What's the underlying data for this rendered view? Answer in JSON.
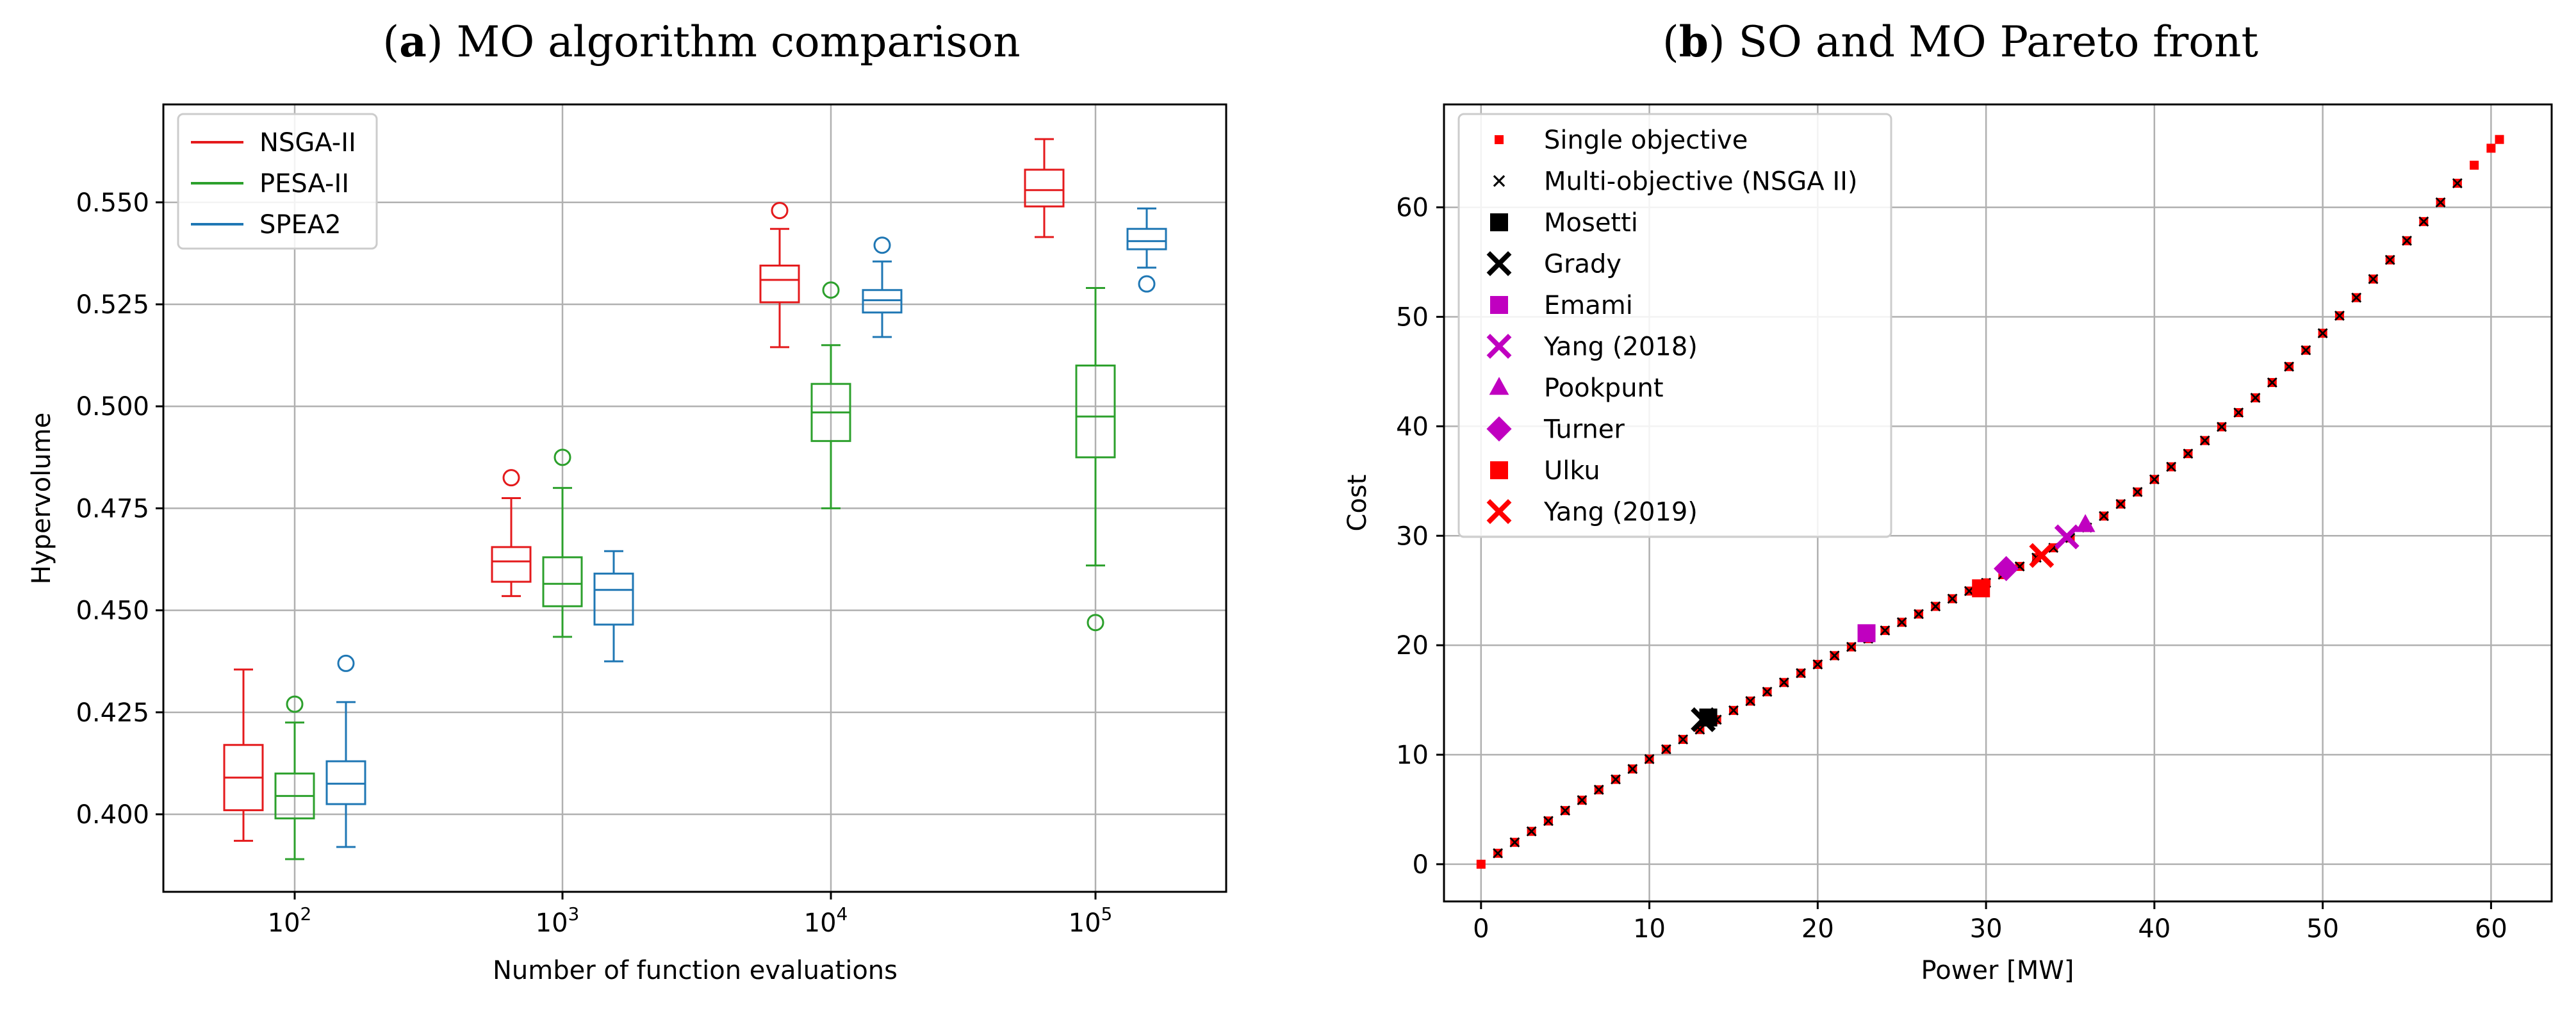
{
  "chart_data": [
    {
      "type": "box",
      "title_prefix": "(",
      "title_letter": "a",
      "title_suffix": ") MO algorithm comparison",
      "xlabel": "Number of function evaluations",
      "ylabel": "Hypervolume",
      "ylim": [
        0.381,
        0.574
      ],
      "yticks": [
        "0.400",
        "0.425",
        "0.450",
        "0.475",
        "0.500",
        "0.525",
        "0.550"
      ],
      "categories": [
        "10",
        "10",
        "10",
        "10"
      ],
      "category_exponents": [
        "2",
        "3",
        "4",
        "5"
      ],
      "grid": true,
      "legend": "top-left",
      "series": [
        {
          "name": "NSGA-II",
          "color": "#e41a1c",
          "boxes": [
            {
              "whislo": 0.3935,
              "q1": 0.401,
              "med": 0.409,
              "q3": 0.417,
              "whishi": 0.4355,
              "fliers": []
            },
            {
              "whislo": 0.4535,
              "q1": 0.457,
              "med": 0.462,
              "q3": 0.4655,
              "whishi": 0.4775,
              "fliers": [
                0.4825
              ]
            },
            {
              "whislo": 0.5145,
              "q1": 0.5255,
              "med": 0.531,
              "q3": 0.5345,
              "whishi": 0.5435,
              "fliers": [
                0.548
              ]
            },
            {
              "whislo": 0.5415,
              "q1": 0.549,
              "med": 0.553,
              "q3": 0.558,
              "whishi": 0.5655,
              "fliers": []
            }
          ]
        },
        {
          "name": "PESA-II",
          "color": "#2ca02c",
          "boxes": [
            {
              "whislo": 0.389,
              "q1": 0.399,
              "med": 0.4045,
              "q3": 0.41,
              "whishi": 0.4225,
              "fliers": [
                0.427
              ]
            },
            {
              "whislo": 0.4435,
              "q1": 0.451,
              "med": 0.4565,
              "q3": 0.463,
              "whishi": 0.48,
              "fliers": [
                0.4875
              ]
            },
            {
              "whislo": 0.475,
              "q1": 0.4915,
              "med": 0.4985,
              "q3": 0.5055,
              "whishi": 0.515,
              "fliers": [
                0.5285
              ]
            },
            {
              "whislo": 0.461,
              "q1": 0.4875,
              "med": 0.4975,
              "q3": 0.51,
              "whishi": 0.529,
              "fliers": [
                0.447
              ]
            }
          ]
        },
        {
          "name": "SPEA2",
          "color": "#1f77b4",
          "boxes": [
            {
              "whislo": 0.392,
              "q1": 0.4025,
              "med": 0.4075,
              "q3": 0.413,
              "whishi": 0.4275,
              "fliers": [
                0.437
              ]
            },
            {
              "whislo": 0.4375,
              "q1": 0.4465,
              "med": 0.455,
              "q3": 0.459,
              "whishi": 0.4645,
              "fliers": []
            },
            {
              "whislo": 0.517,
              "q1": 0.523,
              "med": 0.526,
              "q3": 0.5285,
              "whishi": 0.5355,
              "fliers": [
                0.5395
              ]
            },
            {
              "whislo": 0.534,
              "q1": 0.5385,
              "med": 0.5405,
              "q3": 0.5435,
              "whishi": 0.5485,
              "fliers": [
                0.53
              ]
            }
          ]
        }
      ]
    },
    {
      "type": "scatter",
      "title_prefix": "(",
      "title_letter": "b",
      "title_suffix": ") SO and MO Pareto front",
      "xlabel": "Power [MW]",
      "ylabel": "Cost",
      "xlim": [
        -2.2,
        63.6
      ],
      "ylim": [
        -3.4,
        69.4
      ],
      "xticks": [
        0,
        10,
        20,
        30,
        40,
        50,
        60
      ],
      "yticks": [
        0,
        10,
        20,
        30,
        40,
        50,
        60
      ],
      "grid": true,
      "legend": "top-left",
      "front": {
        "single_objective_color": "#ff0000",
        "multi_objective_color": "#000000",
        "points": [
          [
            0,
            0
          ],
          [
            1,
            1
          ],
          [
            2,
            2
          ],
          [
            3,
            3
          ],
          [
            4,
            3.95
          ],
          [
            5,
            4.9
          ],
          [
            6,
            5.85
          ],
          [
            7,
            6.8
          ],
          [
            8,
            7.75
          ],
          [
            9,
            8.7
          ],
          [
            10,
            9.6
          ],
          [
            11,
            10.5
          ],
          [
            12,
            11.4
          ],
          [
            13,
            12.3
          ],
          [
            14,
            13.2
          ],
          [
            15,
            14.05
          ],
          [
            16,
            14.9
          ],
          [
            17,
            15.75
          ],
          [
            18,
            16.6
          ],
          [
            19,
            17.45
          ],
          [
            20,
            18.25
          ],
          [
            21,
            19.05
          ],
          [
            22,
            19.85
          ],
          [
            23,
            20.6
          ],
          [
            24,
            21.35
          ],
          [
            25,
            22.1
          ],
          [
            26,
            22.85
          ],
          [
            27,
            23.55
          ],
          [
            28,
            24.25
          ],
          [
            29,
            24.95
          ],
          [
            30,
            25.7
          ],
          [
            31,
            26.45
          ],
          [
            32,
            27.2
          ],
          [
            33,
            28.0
          ],
          [
            34,
            28.9
          ],
          [
            35,
            29.8
          ],
          [
            36,
            30.75
          ],
          [
            37,
            31.8
          ],
          [
            38,
            32.9
          ],
          [
            39,
            34.0
          ],
          [
            40,
            35.15
          ],
          [
            41,
            36.3
          ],
          [
            42,
            37.5
          ],
          [
            43,
            38.7
          ],
          [
            44,
            39.95
          ],
          [
            45,
            41.25
          ],
          [
            46,
            42.6
          ],
          [
            47,
            44.0
          ],
          [
            48,
            45.45
          ],
          [
            49,
            46.95
          ],
          [
            50,
            48.5
          ],
          [
            51,
            50.1
          ],
          [
            52,
            51.75
          ],
          [
            53,
            53.45
          ],
          [
            54,
            55.2
          ],
          [
            55,
            56.95
          ],
          [
            56,
            58.7
          ],
          [
            57,
            60.45
          ],
          [
            58,
            62.2
          ],
          [
            59,
            63.85
          ],
          [
            60,
            65.4
          ],
          [
            60.5,
            66.2
          ]
        ]
      },
      "series": [
        {
          "name": "Single objective",
          "marker": "square-small",
          "color": "#ff0000"
        },
        {
          "name": "Multi-objective (NSGA II)",
          "marker": "x-small",
          "color": "#000000"
        },
        {
          "name": "Mosetti",
          "marker": "square",
          "color": "#000000",
          "x": 13.5,
          "y": 13.4
        },
        {
          "name": "Grady",
          "marker": "x",
          "color": "#000000",
          "x": 13.2,
          "y": 13.2
        },
        {
          "name": "Emami",
          "marker": "square",
          "color": "#c000c0",
          "x": 22.9,
          "y": 21.1
        },
        {
          "name": "Yang (2018)",
          "marker": "x",
          "color": "#c000c0",
          "x": 34.8,
          "y": 29.9
        },
        {
          "name": "Pookpunt",
          "marker": "triangle",
          "color": "#c000c0",
          "x": 35.9,
          "y": 31.0
        },
        {
          "name": "Turner",
          "marker": "diamond",
          "color": "#c000c0",
          "x": 31.2,
          "y": 27.0
        },
        {
          "name": "Ulku",
          "marker": "square",
          "color": "#ff0000",
          "x": 29.7,
          "y": 25.2
        },
        {
          "name": "Yang (2019)",
          "marker": "x",
          "color": "#ff0000",
          "x": 33.3,
          "y": 28.2
        }
      ]
    }
  ]
}
